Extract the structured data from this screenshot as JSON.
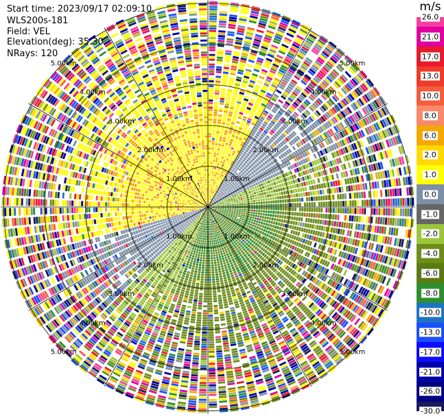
{
  "info": {
    "start_time": "Start time: 2023/09/17 02:09:10",
    "instrument": "WLS200s-181",
    "field": "Field: VEL",
    "elevation": "Elevation(deg): 35.30",
    "nrays": "NRays: 120"
  },
  "colorbar": {
    "unit": "m/s",
    "ticks": [
      "26.0",
      "21.0",
      "17.0",
      "13.0",
      "10.0",
      "8.0",
      "6.0",
      "2.0",
      "1.0",
      "0.0",
      "-1.0",
      "-2.0",
      "-4.0",
      "-6.0",
      "-8.0",
      "-10.0",
      "-13.0",
      "-17.0",
      "-21.0",
      "-26.0",
      "-30.0"
    ],
    "colors": [
      "#f53fa0",
      "#e0009f",
      "#e81b2b",
      "#f03a2a",
      "#f45d3d",
      "#f68a6a",
      "#f5a800",
      "#ffd800",
      "#ffff00",
      "#7e8fa6",
      "#666666",
      "#9cc63a",
      "#6e8c1a",
      "#5b7a12",
      "#2e8f2e",
      "#1f73c5",
      "#1a4fff",
      "#0d0dff",
      "#0000a8",
      "#000080",
      "#1a1a5e"
    ]
  },
  "range_labels": [
    "1.00km",
    "2.00km",
    "3.00km",
    "4.00km",
    "5.00km"
  ],
  "colors": {
    "yellow": "#ffff00",
    "orange": "#f5a800",
    "gray": "#7e8fa6",
    "light_green": "#9cc63a",
    "olive": "#6e8c1a",
    "green": "#2e8f2e"
  }
}
